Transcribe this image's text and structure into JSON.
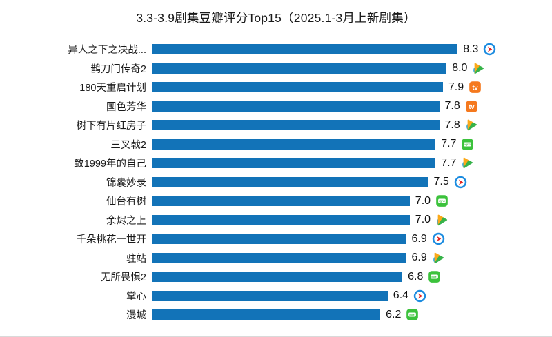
{
  "title": "3.3-3.9剧集豆瓣评分Top15（2025.1-3月上新剧集）",
  "colors": {
    "bar": "#1273B8",
    "youku_ring": "#1C8CE0",
    "youku_arrow": "#E32421",
    "tencent_orange": "#FBA919",
    "tencent_green": "#37B34A",
    "tencent_blue": "#28A8E0",
    "mgtv_orange": "#F5791E",
    "iqiyi_green": "#3CC23C"
  },
  "chart_data": {
    "type": "bar",
    "orientation": "horizontal",
    "title": "3.3-3.9剧集豆瓣评分Top15（2025.1-3月上新剧集）",
    "xlim": [
      0,
      8.5
    ],
    "grid": false,
    "value_labels": true,
    "legend": "none",
    "categories": [
      "异人之下之决战...",
      "鹊刀门传奇2",
      "180天重启计划",
      "国色芳华",
      "树下有片红房子",
      "三叉戟2",
      "致1999年的自己",
      "锦囊妙录",
      "仙台有树",
      "余烬之上",
      "千朵桃花一世开",
      "驻站",
      "无所畏惧2",
      "掌心",
      "漫城"
    ],
    "values": [
      8.3,
      8.0,
      7.9,
      7.8,
      7.8,
      7.7,
      7.7,
      7.5,
      7.0,
      7.0,
      6.9,
      6.9,
      6.8,
      6.4,
      6.2
    ],
    "platforms": [
      "youku",
      "tencent",
      "mgtv",
      "mgtv",
      "tencent",
      "iqiyi",
      "tencent",
      "youku",
      "iqiyi",
      "tencent",
      "youku",
      "tencent",
      "iqiyi",
      "youku",
      "iqiyi"
    ],
    "platform_names": {
      "youku": "优酷",
      "tencent": "腾讯视频",
      "mgtv": "芒果TV",
      "iqiyi": "爱奇艺"
    }
  }
}
